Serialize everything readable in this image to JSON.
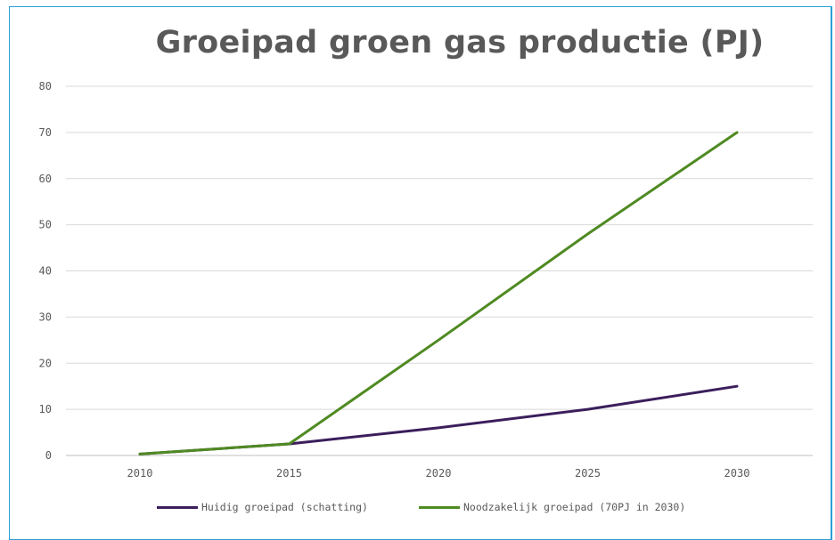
{
  "chart_data": {
    "type": "line",
    "title": "Groeipad groen gas productie (PJ)",
    "xlabel": "",
    "ylabel": "",
    "x": [
      2010,
      2015,
      2020,
      2025,
      2030
    ],
    "x_tick_labels": [
      "2010",
      "2015",
      "2020",
      "2025",
      "2030"
    ],
    "ylim": [
      0,
      80
    ],
    "y_ticks": [
      0,
      10,
      20,
      30,
      40,
      50,
      60,
      70,
      80
    ],
    "y_tick_labels": [
      "0",
      "10",
      "20",
      "30",
      "40",
      "50",
      "60",
      "70",
      "80"
    ],
    "grid": "horizontal",
    "legend_position": "bottom",
    "series": [
      {
        "name": "Huidig groeipad (schatting)",
        "color": "#3b1e5c",
        "values": [
          0.3,
          2.5,
          6,
          10,
          15
        ]
      },
      {
        "name": "Noodzakelijk groeipad (70PJ in 2030)",
        "color": "#4f8a22",
        "values": [
          0.3,
          2.5,
          25,
          48,
          70
        ]
      }
    ]
  }
}
